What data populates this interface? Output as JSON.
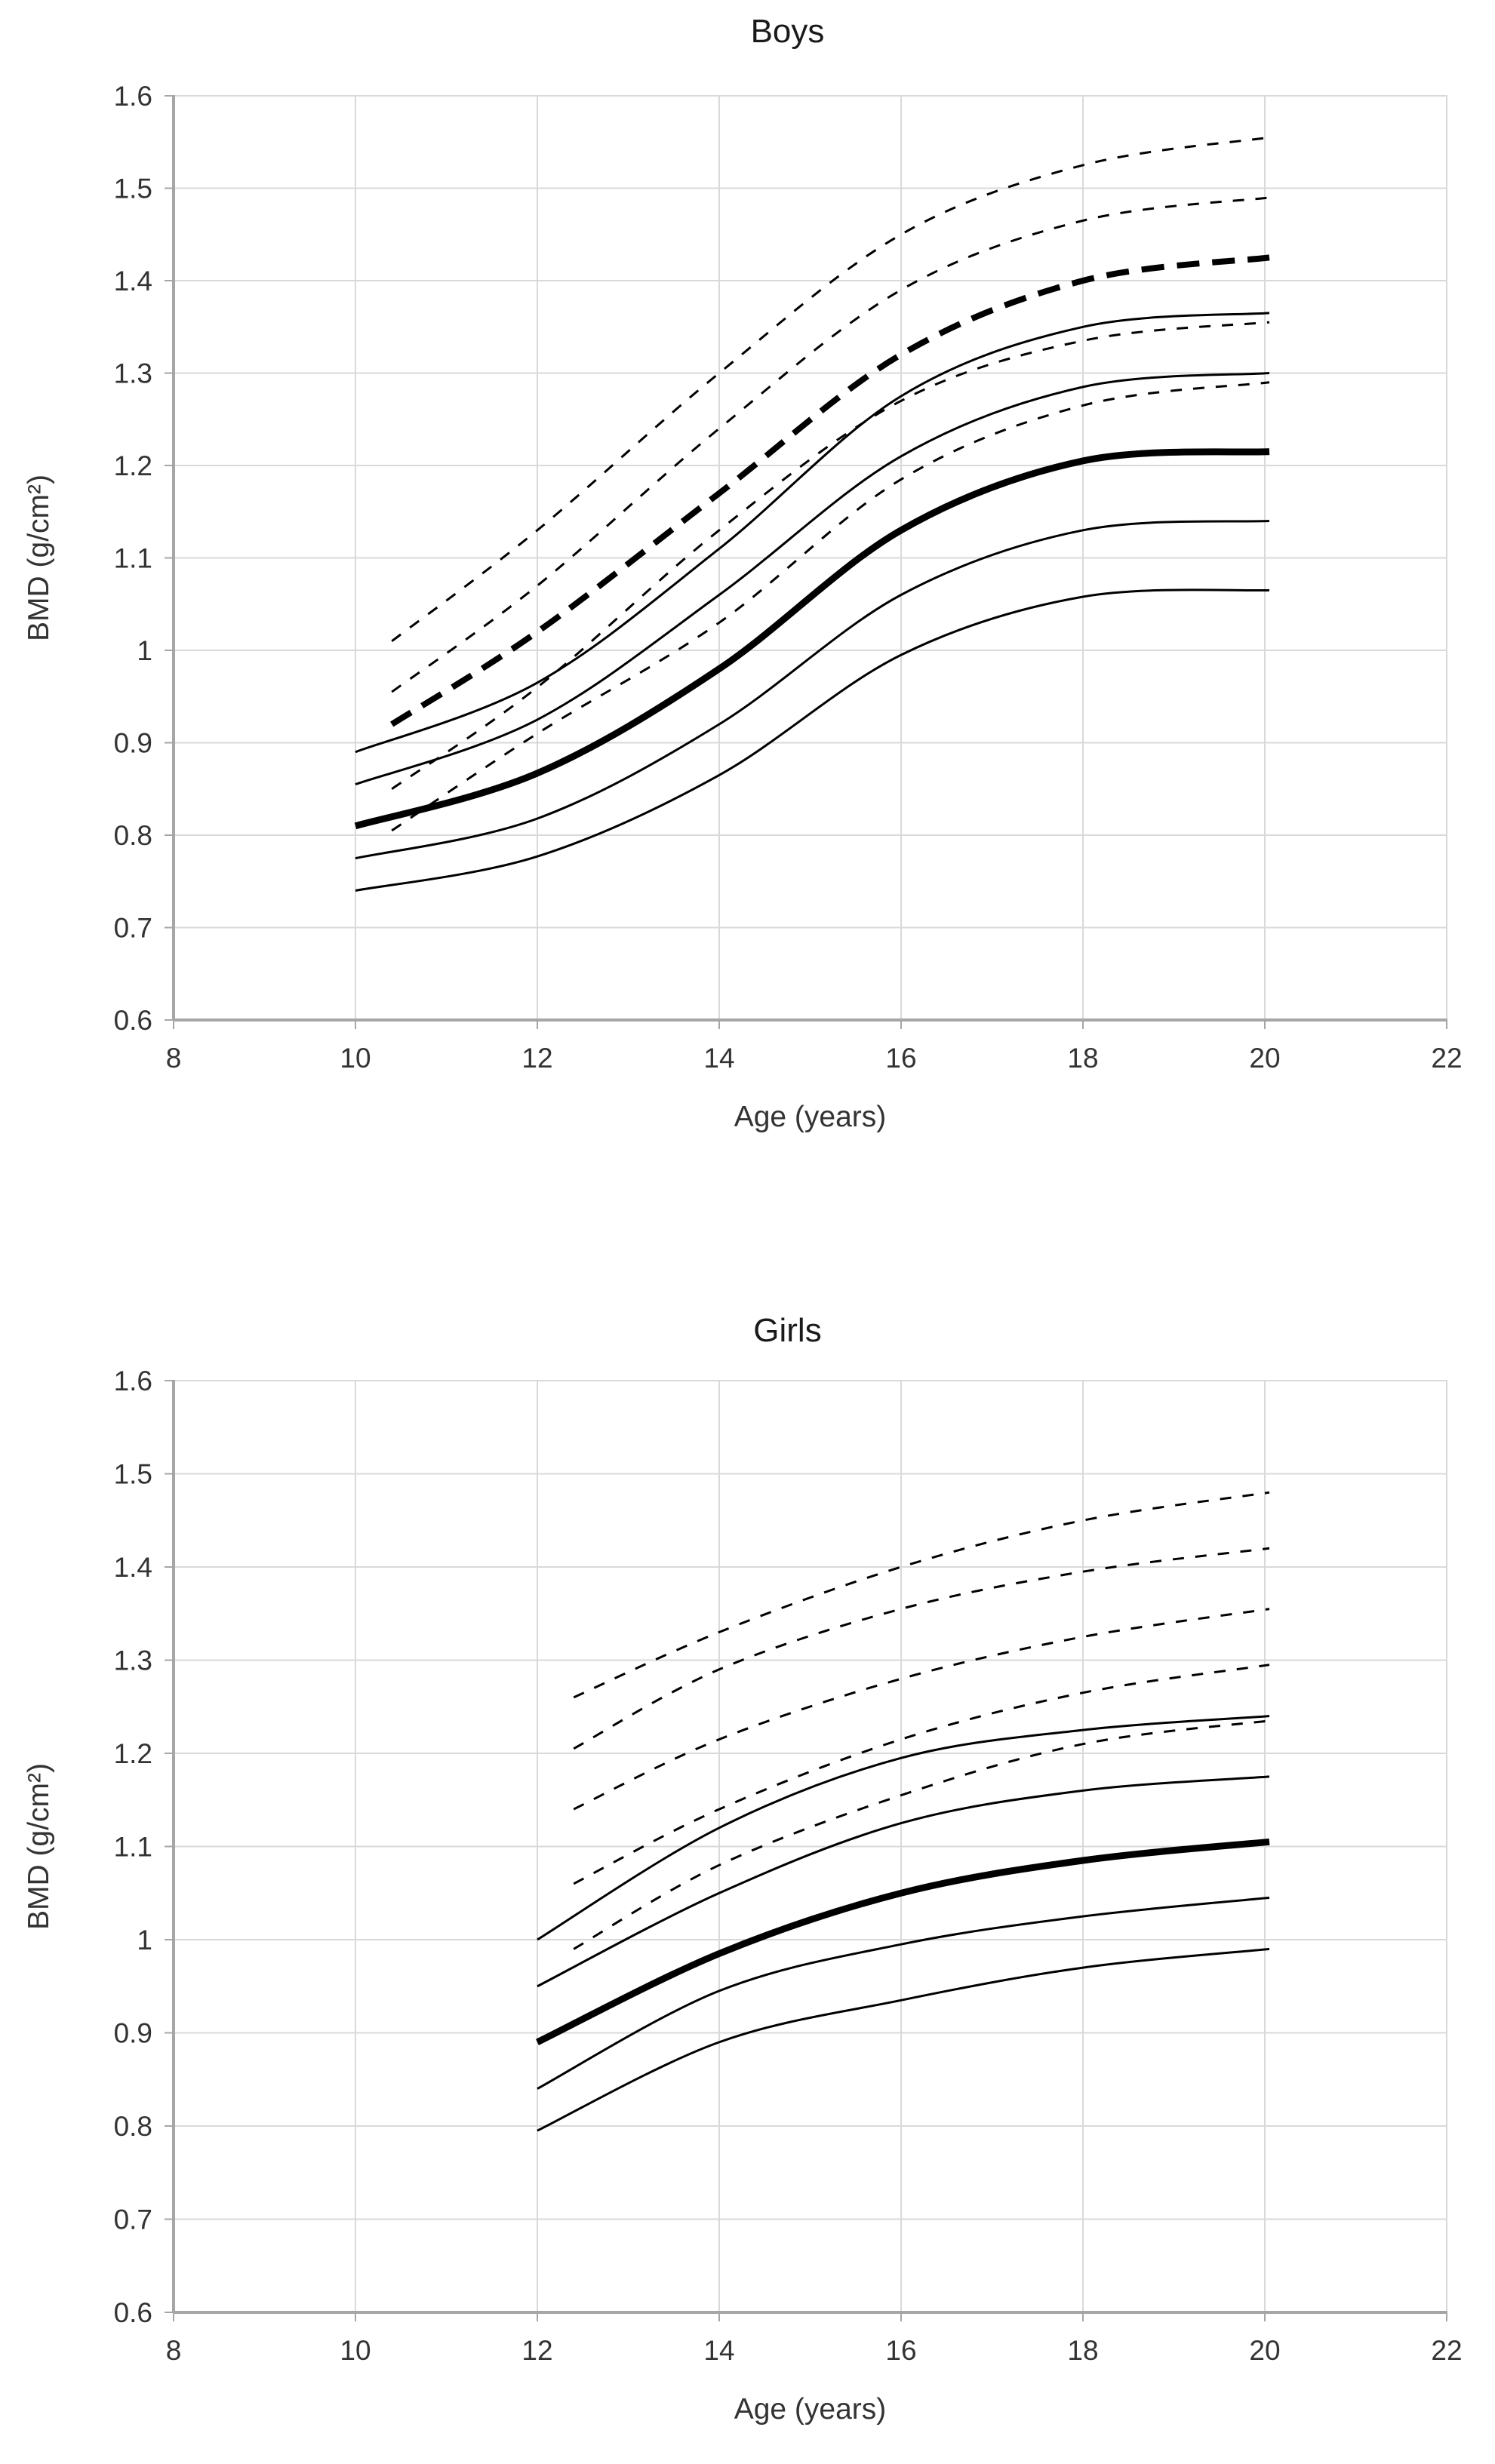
{
  "page": {
    "background": "#ffffff"
  },
  "colors": {
    "curve": "#000000",
    "grid": "#d9d9d9",
    "axis": "#a6a6a6",
    "tick_text": "#333333",
    "title_text": "#1a1a1a"
  },
  "chart_data": [
    {
      "type": "line",
      "title": "Boys",
      "xlabel": "Age (years)",
      "ylabel": "BMD (g/cm²)",
      "xlim": [
        8,
        22
      ],
      "ylim": [
        0.6,
        1.6
      ],
      "grid": true,
      "legend_position": "none",
      "x_ticks": [
        {
          "v": 8,
          "label": "8"
        },
        {
          "v": 10,
          "label": "10"
        },
        {
          "v": 12,
          "label": "12"
        },
        {
          "v": 14,
          "label": "14"
        },
        {
          "v": 16,
          "label": "16"
        },
        {
          "v": 18,
          "label": "18"
        },
        {
          "v": 20,
          "label": "20"
        },
        {
          "v": 22,
          "label": "22"
        }
      ],
      "y_ticks": [
        {
          "v": 1.6,
          "label": "1.6"
        },
        {
          "v": 1.5,
          "label": "1.5"
        },
        {
          "v": 1.4,
          "label": "1.4"
        },
        {
          "v": 1.3,
          "label": "1.3"
        },
        {
          "v": 1.2,
          "label": "1.2"
        },
        {
          "v": 1.1,
          "label": "1.1"
        },
        {
          "v": 1.0,
          "label": "1"
        },
        {
          "v": 0.9,
          "label": "0.9"
        },
        {
          "v": 0.8,
          "label": "0.8"
        },
        {
          "v": 0.7,
          "label": "0.7"
        },
        {
          "v": 0.6,
          "label": "0.6"
        }
      ],
      "series": [
        {
          "name": "dashed-upper-1",
          "style": "dashed-thin",
          "points": [
            [
              10.4,
              1.01
            ],
            [
              12,
              1.13
            ],
            [
              14,
              1.3
            ],
            [
              16,
              1.45
            ],
            [
              18,
              1.525
            ],
            [
              20.05,
              1.555
            ]
          ]
        },
        {
          "name": "dashed-upper-2",
          "style": "dashed-thin",
          "points": [
            [
              10.4,
              0.955
            ],
            [
              12,
              1.07
            ],
            [
              14,
              1.24
            ],
            [
              16,
              1.39
            ],
            [
              18,
              1.465
            ],
            [
              20.05,
              1.49
            ]
          ]
        },
        {
          "name": "dashed-median",
          "style": "dashed-thick",
          "points": [
            [
              10.4,
              0.92
            ],
            [
              12,
              1.02
            ],
            [
              14,
              1.17
            ],
            [
              16,
              1.32
            ],
            [
              18,
              1.4
            ],
            [
              20.05,
              1.425
            ]
          ]
        },
        {
          "name": "dashed-lower-1",
          "style": "dashed-thin",
          "points": [
            [
              10.4,
              0.85
            ],
            [
              12,
              0.96
            ],
            [
              14,
              1.13
            ],
            [
              16,
              1.27
            ],
            [
              18,
              1.335
            ],
            [
              20.05,
              1.355
            ]
          ]
        },
        {
          "name": "dashed-lower-2",
          "style": "dashed-thin",
          "points": [
            [
              10.4,
              0.805
            ],
            [
              12,
              0.91
            ],
            [
              14,
              1.03
            ],
            [
              16,
              1.185
            ],
            [
              18,
              1.265
            ],
            [
              20.05,
              1.29
            ]
          ]
        },
        {
          "name": "solid-upper-1",
          "style": "solid-thin",
          "points": [
            [
              10,
              0.89
            ],
            [
              12,
              0.965
            ],
            [
              14,
              1.11
            ],
            [
              16,
              1.275
            ],
            [
              18,
              1.35
            ],
            [
              20.05,
              1.365
            ]
          ]
        },
        {
          "name": "solid-upper-2",
          "style": "solid-thin",
          "points": [
            [
              10,
              0.855
            ],
            [
              12,
              0.925
            ],
            [
              14,
              1.06
            ],
            [
              16,
              1.21
            ],
            [
              18,
              1.285
            ],
            [
              20.05,
              1.3
            ]
          ]
        },
        {
          "name": "solid-median",
          "style": "solid-thick",
          "points": [
            [
              10,
              0.81
            ],
            [
              12,
              0.867
            ],
            [
              14,
              0.98
            ],
            [
              16,
              1.13
            ],
            [
              18,
              1.205
            ],
            [
              20.05,
              1.215
            ]
          ]
        },
        {
          "name": "solid-lower-1",
          "style": "solid-thin",
          "points": [
            [
              10,
              0.775
            ],
            [
              12,
              0.818
            ],
            [
              14,
              0.92
            ],
            [
              16,
              1.06
            ],
            [
              18,
              1.13
            ],
            [
              20.05,
              1.14
            ]
          ]
        },
        {
          "name": "solid-lower-2",
          "style": "solid-thin",
          "points": [
            [
              10,
              0.74
            ],
            [
              12,
              0.777
            ],
            [
              14,
              0.865
            ],
            [
              16,
              0.995
            ],
            [
              18,
              1.058
            ],
            [
              20.05,
              1.065
            ]
          ]
        }
      ]
    },
    {
      "type": "line",
      "title": "Girls",
      "xlabel": "Age (years)",
      "ylabel": "BMD (g/cm²)",
      "xlim": [
        8,
        22
      ],
      "ylim": [
        0.6,
        1.6
      ],
      "grid": true,
      "legend_position": "none",
      "x_ticks": [
        {
          "v": 8,
          "label": "8"
        },
        {
          "v": 10,
          "label": "10"
        },
        {
          "v": 12,
          "label": "12"
        },
        {
          "v": 14,
          "label": "14"
        },
        {
          "v": 16,
          "label": "16"
        },
        {
          "v": 18,
          "label": "18"
        },
        {
          "v": 20,
          "label": "20"
        },
        {
          "v": 22,
          "label": "22"
        }
      ],
      "y_ticks": [
        {
          "v": 1.6,
          "label": "1.6"
        },
        {
          "v": 1.5,
          "label": "1.5"
        },
        {
          "v": 1.4,
          "label": "1.4"
        },
        {
          "v": 1.3,
          "label": "1.3"
        },
        {
          "v": 1.2,
          "label": "1.2"
        },
        {
          "v": 1.1,
          "label": "1.1"
        },
        {
          "v": 1.0,
          "label": "1"
        },
        {
          "v": 0.9,
          "label": "0.9"
        },
        {
          "v": 0.8,
          "label": "0.8"
        },
        {
          "v": 0.7,
          "label": "0.7"
        },
        {
          "v": 0.6,
          "label": "0.6"
        }
      ],
      "series": [
        {
          "name": "dashed-upper-1",
          "style": "dashed-thin",
          "points": [
            [
              12.4,
              1.26
            ],
            [
              14,
              1.33
            ],
            [
              16,
              1.4
            ],
            [
              18,
              1.45
            ],
            [
              20.05,
              1.48
            ]
          ]
        },
        {
          "name": "dashed-upper-2",
          "style": "dashed-thin",
          "points": [
            [
              12.4,
              1.205
            ],
            [
              14,
              1.29
            ],
            [
              16,
              1.355
            ],
            [
              18,
              1.395
            ],
            [
              20.05,
              1.42
            ]
          ]
        },
        {
          "name": "dashed-median",
          "style": "dashed-thin",
          "points": [
            [
              12.4,
              1.14
            ],
            [
              14,
              1.215
            ],
            [
              16,
              1.28
            ],
            [
              18,
              1.325
            ],
            [
              20.05,
              1.355
            ]
          ]
        },
        {
          "name": "dashed-lower-1",
          "style": "dashed-thin",
          "points": [
            [
              12.4,
              1.06
            ],
            [
              14,
              1.14
            ],
            [
              16,
              1.215
            ],
            [
              18,
              1.265
            ],
            [
              20.05,
              1.295
            ]
          ]
        },
        {
          "name": "dashed-lower-2",
          "style": "dashed-thin",
          "points": [
            [
              12.4,
              0.99
            ],
            [
              14,
              1.08
            ],
            [
              16,
              1.155
            ],
            [
              18,
              1.21
            ],
            [
              20.05,
              1.235
            ]
          ]
        },
        {
          "name": "solid-upper-1",
          "style": "solid-thin",
          "points": [
            [
              12,
              1.0
            ],
            [
              14,
              1.12
            ],
            [
              16,
              1.195
            ],
            [
              18,
              1.225
            ],
            [
              20.05,
              1.24
            ]
          ]
        },
        {
          "name": "solid-upper-2",
          "style": "solid-thin",
          "points": [
            [
              12,
              0.95
            ],
            [
              14,
              1.05
            ],
            [
              16,
              1.125
            ],
            [
              18,
              1.16
            ],
            [
              20.05,
              1.175
            ]
          ]
        },
        {
          "name": "solid-median",
          "style": "solid-thick",
          "points": [
            [
              12,
              0.89
            ],
            [
              14,
              0.985
            ],
            [
              16,
              1.05
            ],
            [
              18,
              1.085
            ],
            [
              20.05,
              1.105
            ]
          ]
        },
        {
          "name": "solid-lower-1",
          "style": "solid-thin",
          "points": [
            [
              12,
              0.84
            ],
            [
              14,
              0.945
            ],
            [
              16,
              0.995
            ],
            [
              18,
              1.025
            ],
            [
              20.05,
              1.045
            ]
          ]
        },
        {
          "name": "solid-lower-2",
          "style": "solid-thin",
          "points": [
            [
              12,
              0.795
            ],
            [
              14,
              0.89
            ],
            [
              16,
              0.935
            ],
            [
              18,
              0.97
            ],
            [
              20.05,
              0.99
            ]
          ]
        }
      ]
    }
  ]
}
